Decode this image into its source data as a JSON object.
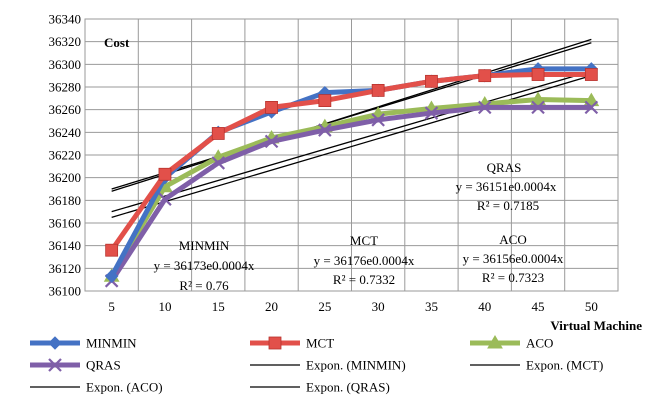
{
  "chart_data": {
    "type": "line",
    "title": "",
    "ylabel": "Cost",
    "xlabel": "Virtual Machine",
    "x": [
      5,
      10,
      15,
      20,
      25,
      30,
      35,
      40,
      45,
      50
    ],
    "ylim": [
      36100,
      36340
    ],
    "yticks": [
      36100,
      36120,
      36140,
      36160,
      36180,
      36200,
      36220,
      36240,
      36260,
      36280,
      36300,
      36320,
      36340
    ],
    "grid": true,
    "legend_position": "bottom",
    "series": [
      {
        "name": "MINMIN",
        "color": "#4472C4",
        "marker": "diamond",
        "values": [
          36113,
          36200,
          36240,
          36258,
          36275,
          36277,
          36285,
          36290,
          36296,
          36296
        ]
      },
      {
        "name": "MCT",
        "color": "#E2504A",
        "marker": "square",
        "values": [
          36136,
          36203,
          36239,
          36262,
          36268,
          36277,
          36285,
          36290,
          36291,
          36291
        ]
      },
      {
        "name": "ACO",
        "color": "#9BBB59",
        "marker": "triangle",
        "values": [
          36113,
          36192,
          36218,
          36235,
          36245,
          36256,
          36261,
          36265,
          36269,
          36268
        ]
      },
      {
        "name": "QRAS",
        "color": "#7F5FA8",
        "marker": "x",
        "values": [
          36109,
          36181,
          36213,
          36232,
          36242,
          36251,
          36257,
          36262,
          36262,
          36262
        ]
      }
    ],
    "trendlines": [
      {
        "name": "Expon. (MINMIN)",
        "base": 36173,
        "rate": 0.0004,
        "r2_label": "R² = 0.76",
        "eq_label": "y = 36173e0.0004x",
        "title": "MINMIN",
        "y_at_5": 36190,
        "y_at_50": 36319
      },
      {
        "name": "Expon. (MCT)",
        "base": 36176,
        "rate": 0.0004,
        "r2_label": "R² = 0.7332",
        "eq_label": "y = 36176e0.0004x",
        "title": "MCT",
        "y_at_5": 36188,
        "y_at_50": 36322
      },
      {
        "name": "Expon. (ACO)",
        "base": 36156,
        "rate": 0.0004,
        "r2_label": "R² = 0.7323",
        "eq_label": "y = 36156e0.0004x",
        "title": "ACO",
        "y_at_5": 36170,
        "y_at_50": 36294
      },
      {
        "name": "Expon. (QRAS)",
        "base": 36151,
        "rate": 0.0004,
        "r2_label": "R² = 0.7185",
        "eq_label": "y = 36151e0.0004x",
        "title": "QRAS",
        "y_at_5": 36165,
        "y_at_50": 36290
      }
    ]
  }
}
